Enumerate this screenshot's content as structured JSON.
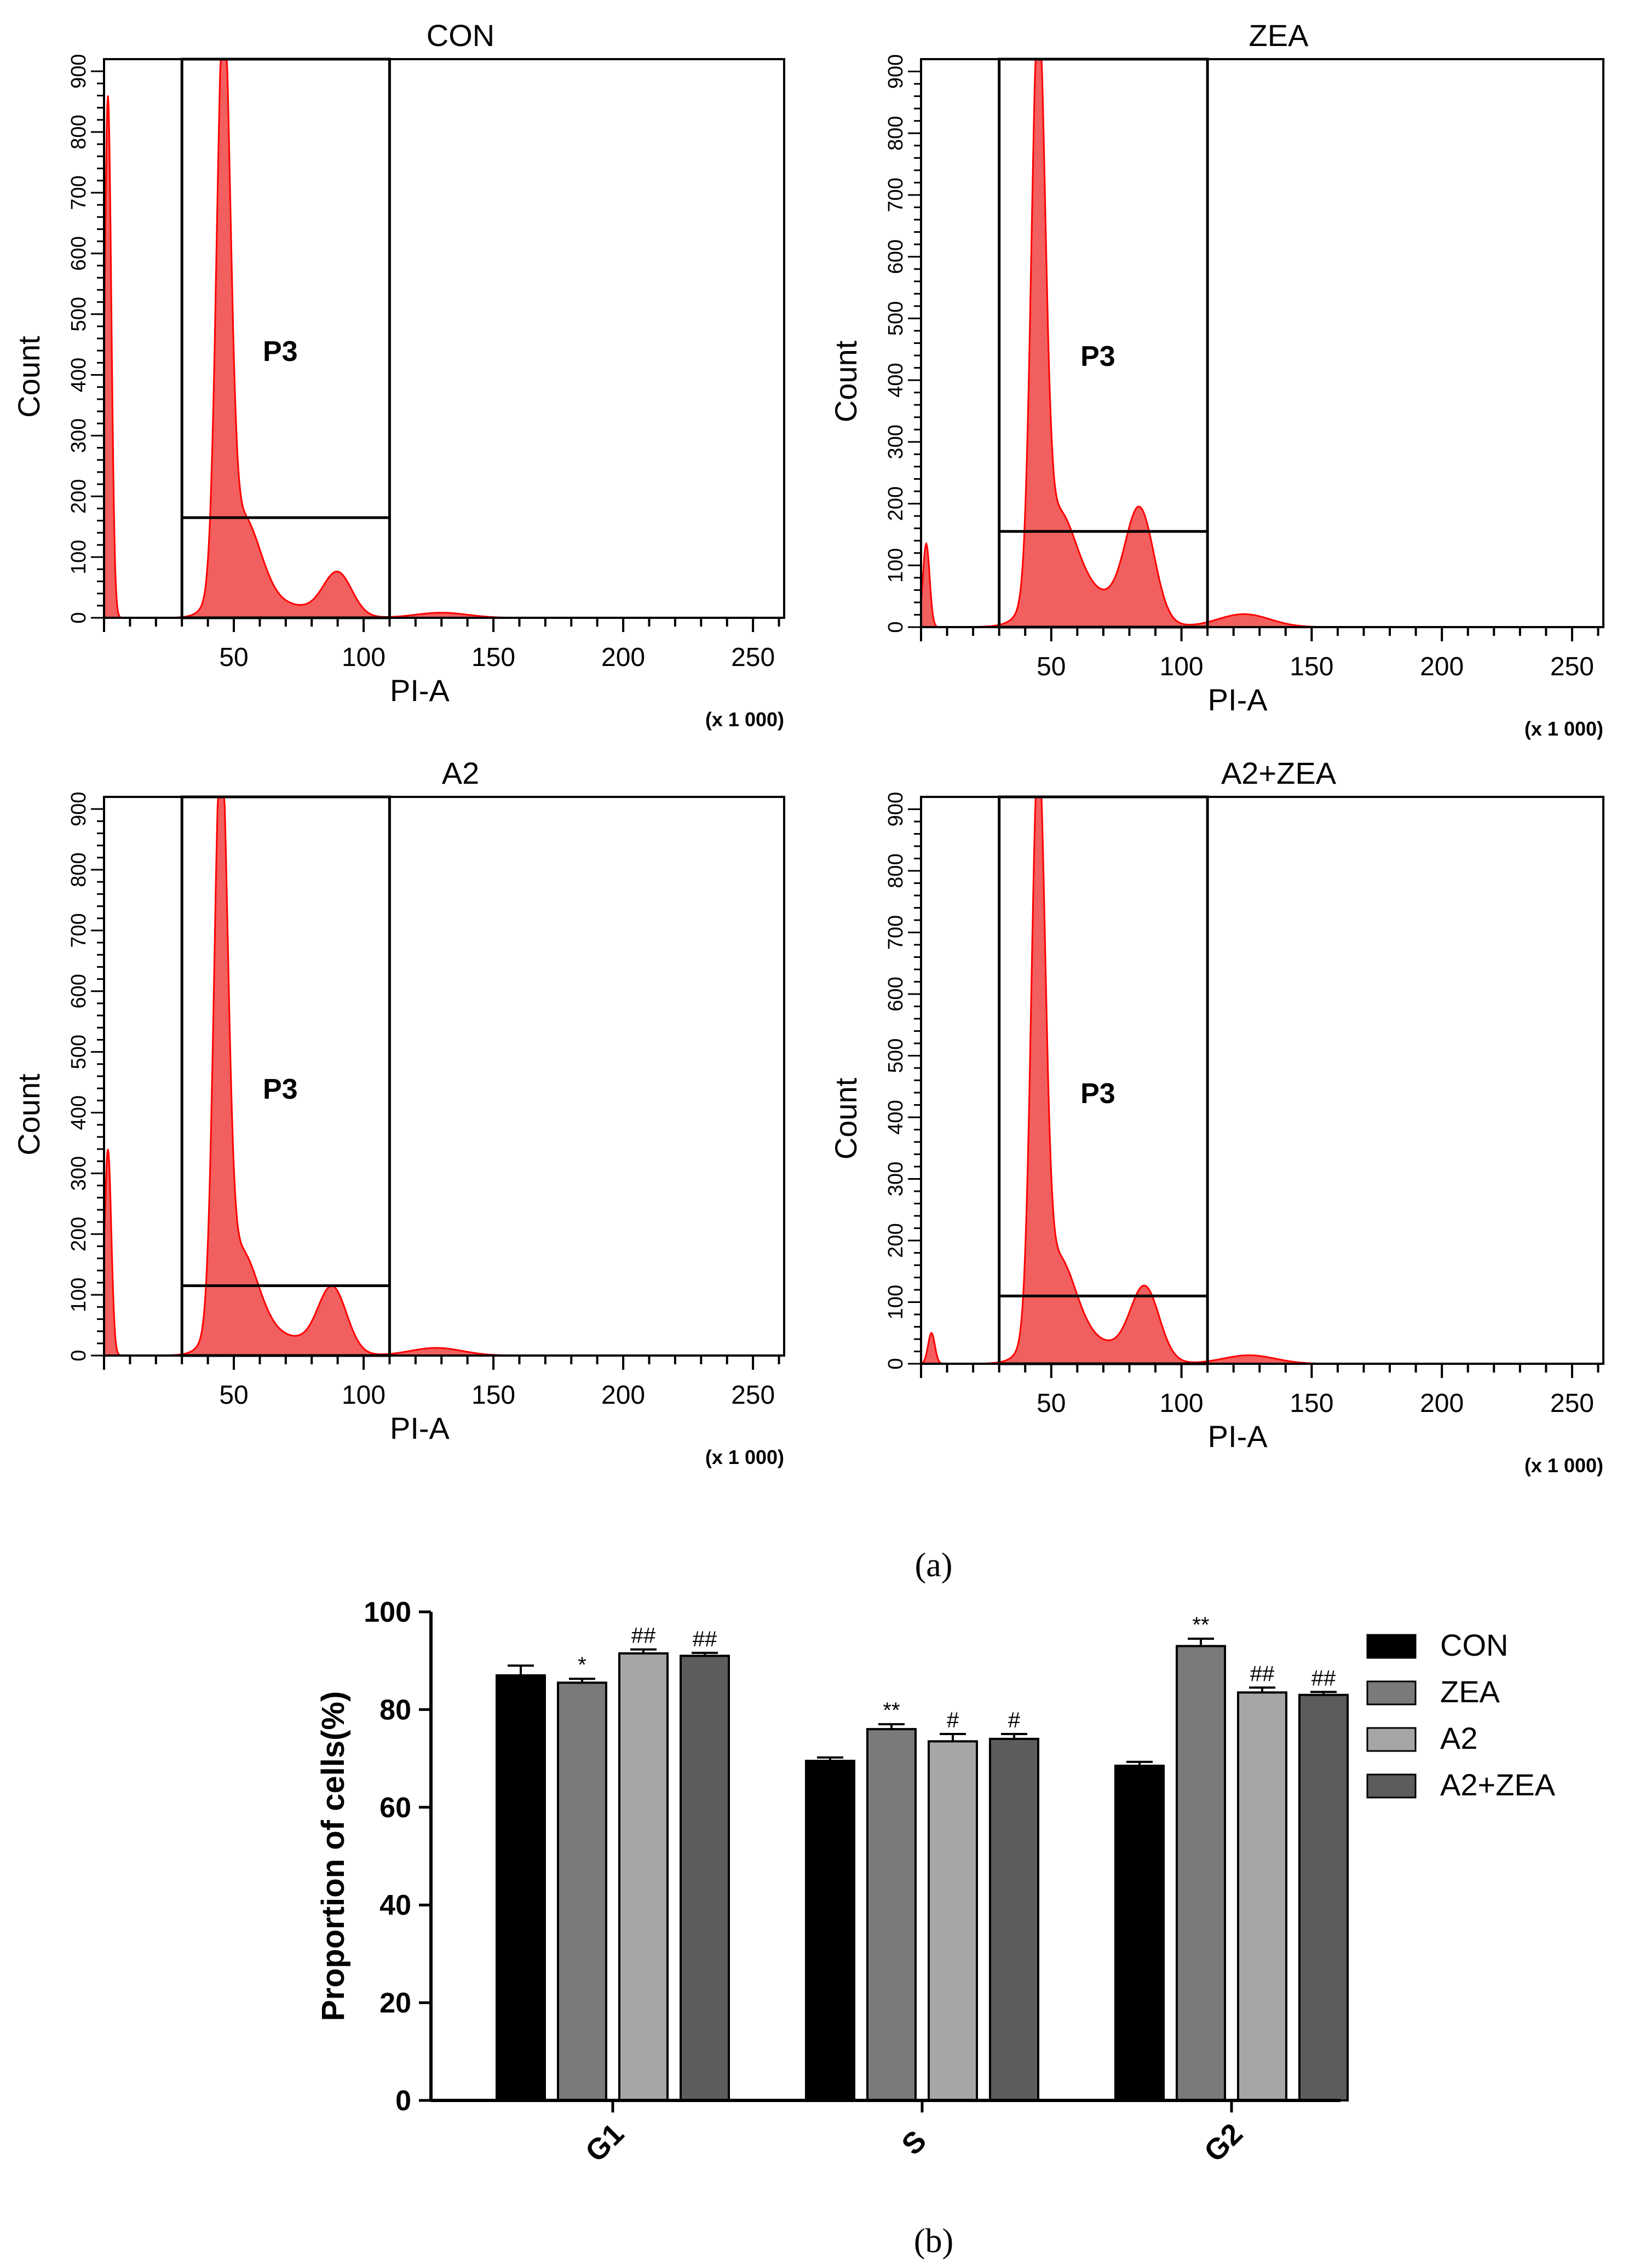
{
  "chart_data": [
    {
      "type": "histogram",
      "title": "CON",
      "xlabel": "PI-A",
      "ylabel": "Count",
      "x_unit_label": "(x 1 000)",
      "gate_label": "P3",
      "xlim": [
        0,
        262
      ],
      "ylim": [
        0,
        920
      ],
      "x_ticks": [
        50,
        100,
        150,
        200,
        250
      ],
      "y_ticks": [
        0,
        100,
        200,
        300,
        400,
        500,
        600,
        700,
        800,
        900
      ],
      "gate_x_range": [
        30,
        110
      ],
      "gate_marker_count": 165,
      "peaks": [
        {
          "x": 1.5,
          "count": 860,
          "phase": "debris"
        },
        {
          "x": 46,
          "count": 920,
          "phase": "G1"
        },
        {
          "x": 90,
          "count": 70,
          "phase": "G2"
        }
      ]
    },
    {
      "type": "histogram",
      "title": "ZEA",
      "xlabel": "PI-A",
      "ylabel": "Count",
      "x_unit_label": "(x 1 000)",
      "gate_label": "P3",
      "xlim": [
        0,
        262
      ],
      "ylim": [
        0,
        920
      ],
      "x_ticks": [
        50,
        100,
        150,
        200,
        250
      ],
      "y_ticks": [
        0,
        100,
        200,
        300,
        400,
        500,
        600,
        700,
        800,
        900
      ],
      "gate_x_range": [
        30,
        110
      ],
      "gate_marker_count": 155,
      "peaks": [
        {
          "x": 2,
          "count": 135,
          "phase": "debris"
        },
        {
          "x": 45,
          "count": 900,
          "phase": "G1"
        },
        {
          "x": 84,
          "count": 175,
          "phase": "G2"
        }
      ]
    },
    {
      "type": "histogram",
      "title": "A2",
      "xlabel": "PI-A",
      "ylabel": "Count",
      "x_unit_label": "(x 1 000)",
      "gate_label": "P3",
      "xlim": [
        0,
        262
      ],
      "ylim": [
        0,
        920
      ],
      "x_ticks": [
        50,
        100,
        150,
        200,
        250
      ],
      "y_ticks": [
        0,
        100,
        200,
        300,
        400,
        500,
        600,
        700,
        800,
        900
      ],
      "gate_x_range": [
        30,
        110
      ],
      "gate_marker_count": 115,
      "peaks": [
        {
          "x": 1.5,
          "count": 340,
          "phase": "debris"
        },
        {
          "x": 45,
          "count": 920,
          "phase": "G1"
        },
        {
          "x": 88,
          "count": 105,
          "phase": "G2"
        }
      ]
    },
    {
      "type": "histogram",
      "title": "A2+ZEA",
      "xlabel": "PI-A",
      "ylabel": "Count",
      "x_unit_label": "(x 1 000)",
      "gate_label": "P3",
      "xlim": [
        0,
        262
      ],
      "ylim": [
        0,
        920
      ],
      "x_ticks": [
        50,
        100,
        150,
        200,
        250
      ],
      "y_ticks": [
        0,
        100,
        200,
        300,
        400,
        500,
        600,
        700,
        800,
        900
      ],
      "gate_x_range": [
        30,
        110
      ],
      "gate_marker_count": 110,
      "peaks": [
        {
          "x": 4,
          "count": 50,
          "phase": "debris"
        },
        {
          "x": 45,
          "count": 900,
          "phase": "G1"
        },
        {
          "x": 86,
          "count": 115,
          "phase": "G2"
        }
      ]
    },
    {
      "type": "bar",
      "title": "",
      "xlabel": "",
      "ylabel": "Proportion of cells(%)",
      "categories": [
        "G1",
        "S",
        "G2"
      ],
      "ylim": [
        0,
        100
      ],
      "y_ticks": [
        0,
        20,
        40,
        60,
        80,
        100
      ],
      "series": [
        {
          "name": "CON",
          "color": "#000000",
          "values": [
            87,
            69.5,
            68.5
          ],
          "errors": [
            2,
            0.7,
            0.8
          ],
          "annotations": [
            "",
            "",
            ""
          ]
        },
        {
          "name": "ZEA",
          "color": "#7a7a7a",
          "values": [
            85.5,
            76,
            93
          ],
          "errors": [
            0.8,
            1,
            1.5
          ],
          "annotations": [
            "*",
            "**",
            "**"
          ]
        },
        {
          "name": "A2",
          "color": "#a6a6a6",
          "values": [
            91.5,
            73.5,
            83.5
          ],
          "errors": [
            0.8,
            1.5,
            1
          ],
          "annotations": [
            "##",
            "#",
            "##"
          ]
        },
        {
          "name": "A2+ZEA",
          "color": "#5c5c5c",
          "values": [
            91,
            74,
            83
          ],
          "errors": [
            0.6,
            1,
            0.6
          ],
          "annotations": [
            "##",
            "#",
            "##"
          ]
        }
      ]
    }
  ],
  "captions": {
    "a": "(a)",
    "b": "(b)"
  },
  "colors": {
    "histogram_fill": "#ee3232",
    "histogram_edge": "#ff0000"
  }
}
